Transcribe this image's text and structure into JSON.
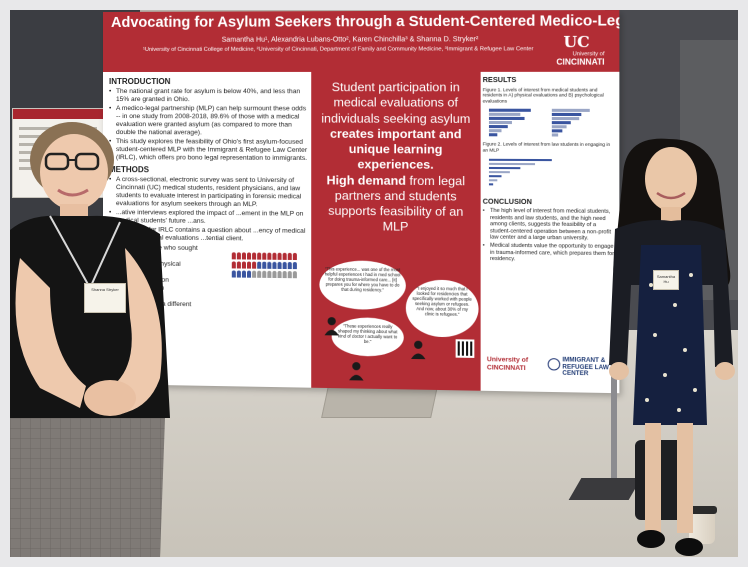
{
  "poster": {
    "title": "Advocating for Asylum Seekers through a Student-Centered Medico-Legal Partnership",
    "authors": "Samantha Hu¹, Alexandria Lubans-Otto², Karen Chinchilla³ & Shanna D. Stryker²",
    "affiliations": "¹University of Cincinnati College of Medicine, ²University of Cincinnati, Department of Family and Community Medicine, ³Immigrant & Refugee Law Center",
    "logo": {
      "mark": "UC",
      "line1": "University of",
      "line2": "CINCINNATI"
    },
    "left": {
      "intro_title": "INTRODUCTION",
      "intro_bullets": [
        "The national grant rate for asylum is below 40%, and less than 15% are granted in Ohio.",
        "A medico-legal partnership (MLP) can help surmount these odds -- in one study from 2008-2018, 89.6% of those with a medical evaluation were granted asylum (as compared to more than double the national average).",
        "This study explores the feasibility of Ohio's first asylum-focused student-centered MLP with the Immigrant & Refugee Law Center (IRLC), which offers pro bono legal representation to immigrants."
      ],
      "methods_title": "METHODS",
      "methods_bullets": [
        "A cross-sectional, electronic survey was sent to University of Cincinnati (UC) medical students, resident physicians, and law students to evaluate interest in participating in forensic medical evaluations for asylum seekers through an MLP.",
        "...ative interviews explored the impact of ...ement in the MLP on medical students' future ...ans.",
        "...sult form for IRLC contains a question about ...ency of medical or psychological evaluations ...tential client."
      ],
      "results_lines": [
        "...of the 39 people who sought",
        "...at IRLC:",
        "...benefit from a physical",
        "...benefit from",
        "...ological evaluation",
        "...benefit from both",
        "...evaluations",
        "...uld benefit from a different",
        "...cal evaluation"
      ]
    },
    "middle": {
      "line_a": "Student participation in medical evaluations of individuals seeking asylum",
      "line_b": "creates important and unique learning experiences.",
      "line_c": "High demand",
      "line_d": "from legal partners and students supports feasibility of an MLP",
      "quote1": "\"This experience... was one of the most helpful experiences I had in med school for doing trauma-informed care... [it] prepares you for where you have to do that during residency.\"",
      "quote2": "\"I enjoyed it so much that I looked for residencies that specifically worked with people seeking asylum or refugees. And now, about 30% of my clinic is refugees.\"",
      "quote3": "\"These experiences really shaped my thinking about what kind of doctor I actually want to be.\""
    },
    "right": {
      "results_title": "RESULTS",
      "fig1_caption": "Figure 1. Levels of interest from medical students and residents in A) physical evaluations and B) psychological evaluations",
      "fig2_caption": "Figure 2. Levels of interest from law students in engaging in an MLP",
      "conclusion_title": "CONCLUSION",
      "conclusion_bullets": [
        "The high level of interest from medical students, residents and law students, and the high need among clients, suggests the feasibility of a student-centered operation between a non-profit law center and a large urban university.",
        "Medical students value the opportunity to engage in trauma-informed care, which prepares them for residency."
      ],
      "logo_uc": "University of CINCINNATI",
      "logo_irlc": "IMMIGRANT & REFUGEE LAW CENTER"
    }
  },
  "badges": {
    "left_name": "Shanna Stryker",
    "right_name": "Samantha Hu"
  },
  "colors": {
    "uc_red": "#b22d35",
    "chart_blue": "#3a55a0",
    "floor": "#cfcbc3"
  }
}
